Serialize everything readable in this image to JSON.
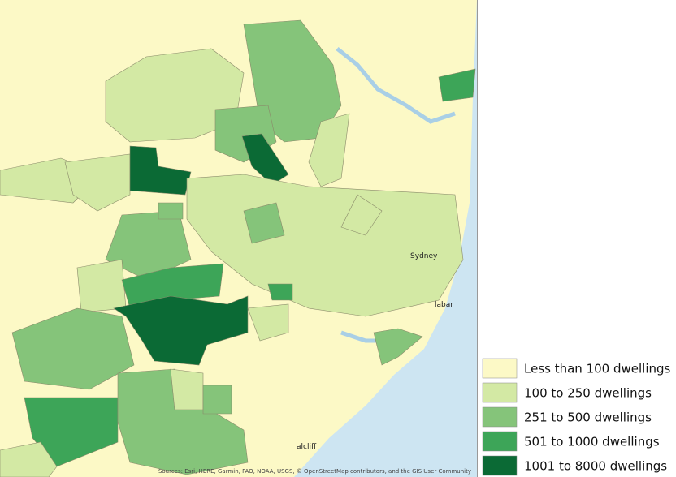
{
  "map": {
    "places": [
      "Sydney",
      "labar",
      "alcliff"
    ],
    "attribution": "Sources: Esri, HERE, Garmin, FAO, NOAA, USGS, © OpenStreetMap contributors, and the GIS User Community",
    "legend": [
      {
        "label": "Less than 100 dwellings",
        "color": "#fcf9c6"
      },
      {
        "label": "100 to 250 dwellings",
        "color": "#d3e9a4"
      },
      {
        "label": "251 to 500 dwellings",
        "color": "#85c47a"
      },
      {
        "label": "501 to 1000 dwellings",
        "color": "#3da558"
      },
      {
        "label": "1001 to 8000 dwellings",
        "color": "#0b6a35"
      }
    ]
  }
}
